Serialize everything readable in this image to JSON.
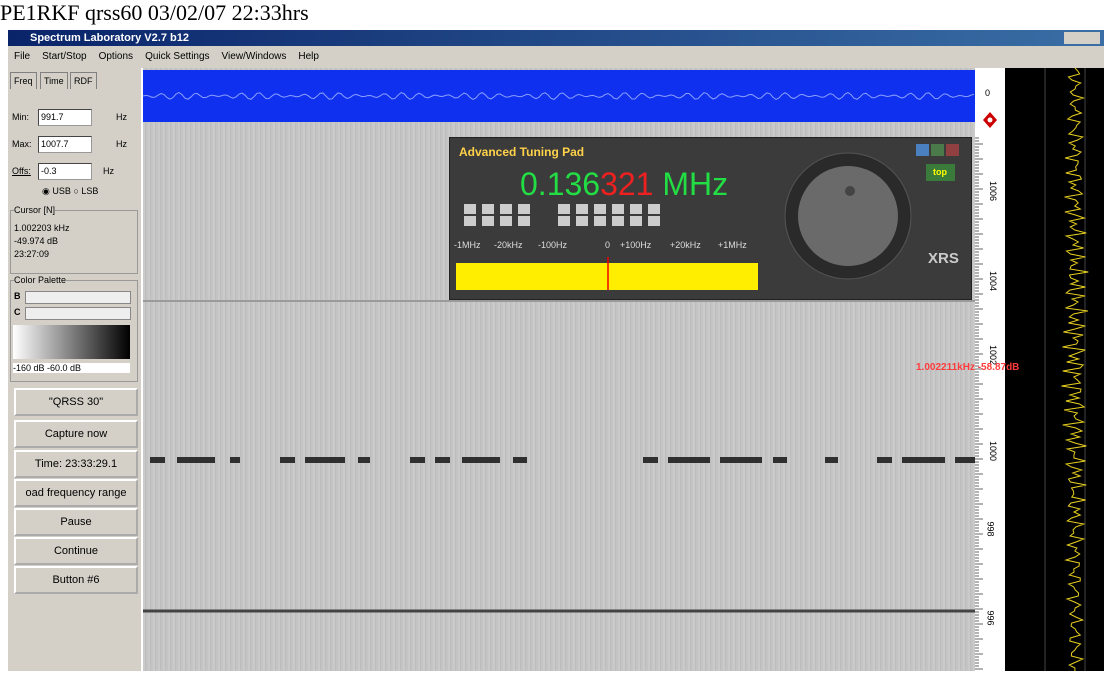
{
  "caption": "PE1RKF qrss60 03/02/07 22:33hrs",
  "window": {
    "title": "Spectrum Laboratory V2.7 b12"
  },
  "menu": [
    "File",
    "Start/Stop",
    "Options",
    "Quick Settings",
    "View/Windows",
    "Help"
  ],
  "left_panel": {
    "tabs": [
      "Freq",
      "Time",
      "RDF"
    ],
    "fields": [
      {
        "label": "Min:",
        "value": "991.7",
        "unit": "Hz"
      },
      {
        "label": "Max:",
        "value": "1007.7",
        "unit": "Hz"
      },
      {
        "label": "Offs:",
        "value": "-0.3",
        "unit": "Hz"
      }
    ],
    "sideband": [
      "USB",
      "LSB"
    ],
    "cursor": {
      "title": "Cursor [N]",
      "lines": [
        "1.002203 kHz",
        "-49.974 dB",
        "23:27:09"
      ]
    },
    "palette": {
      "title": "Color Palette",
      "rows": [
        "B",
        "C"
      ],
      "range": "-160 dB -60.0 dB"
    },
    "buttons": [
      "\"QRSS 30\"",
      "Capture now",
      "Time:  23:33:29.1",
      "oad frequency range",
      "Pause",
      "Continue",
      "Button #6"
    ]
  },
  "tuning_pad": {
    "title": "Advanced Tuning Pad",
    "freq_main": "0.136",
    "freq_fine": "321",
    "freq_unit": "MHz",
    "steps": [
      "-1MHz",
      "-20kHz",
      "-100Hz",
      "0",
      "+100Hz",
      "+20kHz",
      "+1MHz"
    ],
    "top_button": "top",
    "brand": "XRS"
  },
  "scale": {
    "top_label": "0",
    "labels": [
      "1006",
      "1004",
      "1002",
      "1000",
      "998",
      "996"
    ],
    "marker": "1.002211kHz -58.87dB"
  }
}
